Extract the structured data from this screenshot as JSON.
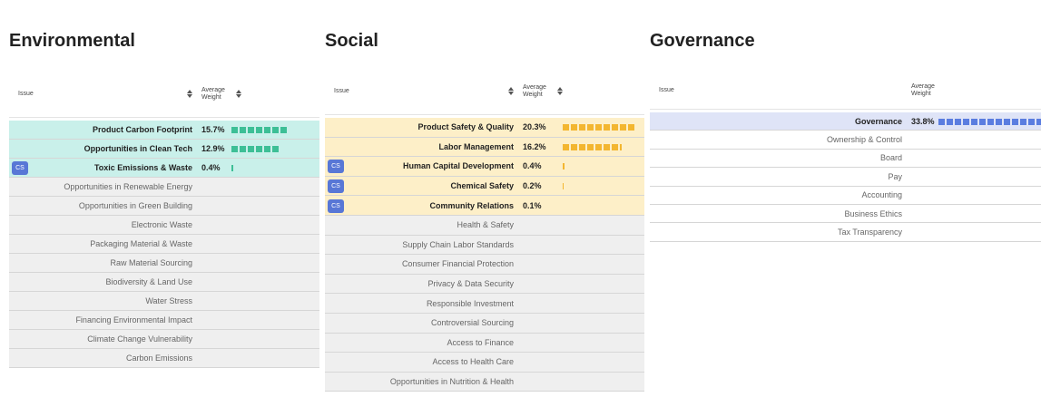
{
  "panels": [
    {
      "title": "Environmental",
      "header": {
        "issue": "Issue",
        "weight": "Average Weight"
      },
      "rows": [
        {
          "issue": "Product Carbon Footprint",
          "weight": "15.7%"
        },
        {
          "issue": "Opportunities in Clean Tech",
          "weight": "12.9%"
        },
        {
          "issue": "Toxic Emissions & Waste",
          "weight": "0.4%",
          "badge": "CS"
        },
        {
          "issue": "Opportunities in Renewable Energy"
        },
        {
          "issue": "Opportunities in Green Building"
        },
        {
          "issue": "Electronic Waste"
        },
        {
          "issue": "Packaging Material & Waste"
        },
        {
          "issue": "Raw Material Sourcing"
        },
        {
          "issue": "Biodiversity & Land Use"
        },
        {
          "issue": "Water Stress"
        },
        {
          "issue": "Financing Environmental Impact"
        },
        {
          "issue": "Climate Change Vulnerability"
        },
        {
          "issue": "Carbon Emissions"
        }
      ]
    },
    {
      "title": "Social",
      "header": {
        "issue": "Issue",
        "weight": "Average Weight"
      },
      "rows": [
        {
          "issue": "Product Safety & Quality",
          "weight": "20.3%"
        },
        {
          "issue": "Labor Management",
          "weight": "16.2%"
        },
        {
          "issue": "Human Capital Development",
          "weight": "0.4%",
          "badge": "CS"
        },
        {
          "issue": "Chemical Safety",
          "weight": "0.2%",
          "badge": "CS"
        },
        {
          "issue": "Community Relations",
          "weight": "0.1%",
          "badge": "CS"
        },
        {
          "issue": "Health & Safety"
        },
        {
          "issue": "Supply Chain Labor Standards"
        },
        {
          "issue": "Consumer Financial Protection"
        },
        {
          "issue": "Privacy & Data Security"
        },
        {
          "issue": "Responsible Investment"
        },
        {
          "issue": "Controversial Sourcing"
        },
        {
          "issue": "Access to Finance"
        },
        {
          "issue": "Access to Health Care"
        },
        {
          "issue": "Opportunities in Nutrition & Health"
        }
      ]
    },
    {
      "title": "Governance",
      "header": {
        "issue": "Issue",
        "weight": "Average Weight"
      },
      "rows": [
        {
          "issue": "Governance",
          "weight": "33.8%"
        },
        {
          "issue": "Ownership & Control"
        },
        {
          "issue": "Board"
        },
        {
          "issue": "Pay"
        },
        {
          "issue": "Accounting"
        },
        {
          "issue": "Business Ethics"
        },
        {
          "issue": "Tax Transparency"
        }
      ]
    }
  ]
}
